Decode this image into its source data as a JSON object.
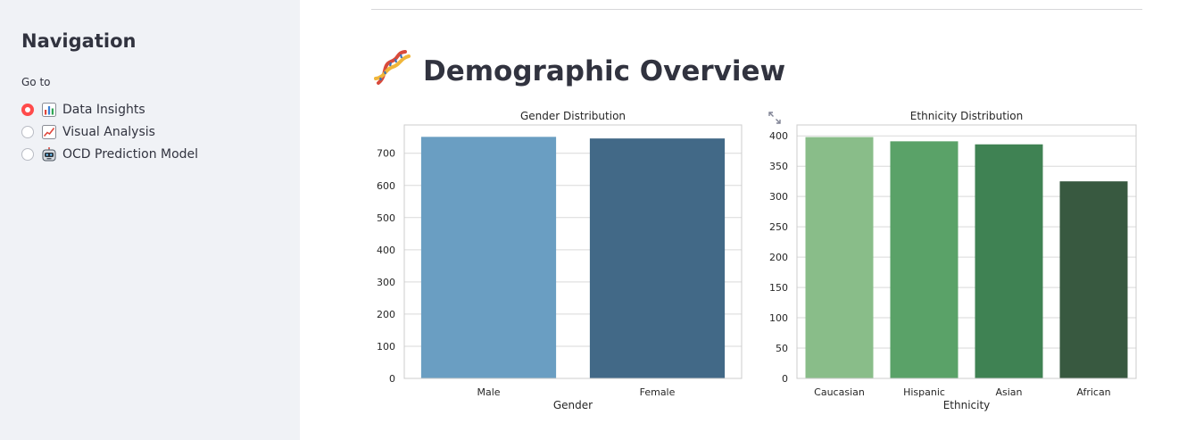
{
  "sidebar": {
    "title": "Navigation",
    "radio_label": "Go to",
    "options": [
      {
        "label": "Data Insights",
        "icon": "bar-chart-emoji-icon",
        "selected": true
      },
      {
        "label": "Visual Analysis",
        "icon": "chart-increasing-emoji-icon",
        "selected": false
      },
      {
        "label": "OCD Prediction Model",
        "icon": "robot-face-emoji-icon",
        "selected": false
      }
    ]
  },
  "main": {
    "title": "Demographic Overview",
    "title_icon": "dna-emoji-icon"
  },
  "chart_data": [
    {
      "type": "bar",
      "title": "Gender Distribution",
      "xlabel": "Gender",
      "ylabel": "",
      "categories": [
        "Male",
        "Female"
      ],
      "values": [
        751,
        746
      ],
      "ylim": [
        0,
        788
      ],
      "yticks": [
        0,
        100,
        200,
        300,
        400,
        500,
        600,
        700
      ],
      "colors": [
        "#6a9ec2",
        "#426987"
      ],
      "grid": true
    },
    {
      "type": "bar",
      "title": "Ethnicity Distribution",
      "xlabel": "Ethnicity",
      "ylabel": "",
      "categories": [
        "Caucasian",
        "Hispanic",
        "Asian",
        "African"
      ],
      "values": [
        398,
        391,
        386,
        325
      ],
      "ylim": [
        0,
        418
      ],
      "yticks": [
        0,
        50,
        100,
        150,
        200,
        250,
        300,
        350,
        400
      ],
      "colors": [
        "#89bd89",
        "#5aa268",
        "#3f8253",
        "#385940"
      ],
      "grid": true
    }
  ]
}
